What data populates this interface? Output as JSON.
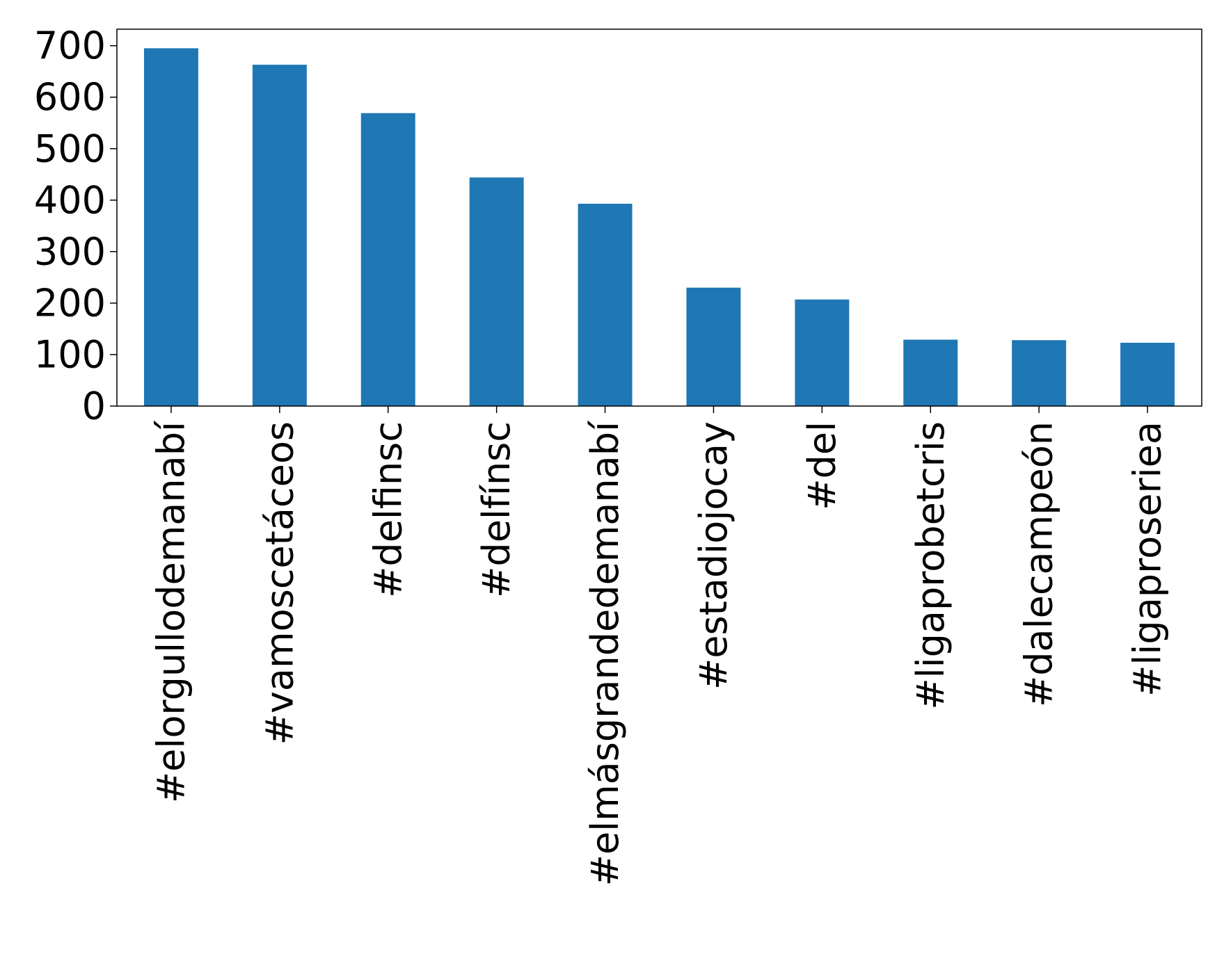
{
  "chart_data": {
    "type": "bar",
    "title": "",
    "xlabel": "",
    "ylabel": "",
    "categories": [
      "#elorgullodemanabí",
      "#vamoscetáceos",
      "#delfinsc",
      "#delfínsc",
      "#elmásgrandedemanabí",
      "#estadiojocay",
      "#del",
      "#ligaprobetcris",
      "#dalecampeón",
      "#ligaproseriea"
    ],
    "values": [
      695,
      663,
      569,
      444,
      393,
      230,
      207,
      129,
      128,
      123
    ],
    "ylim": [
      0,
      732
    ],
    "yticks": [
      0,
      100,
      200,
      300,
      400,
      500,
      600,
      700
    ],
    "bar_color": "#1f77b4",
    "grid": false,
    "legend": "none"
  }
}
